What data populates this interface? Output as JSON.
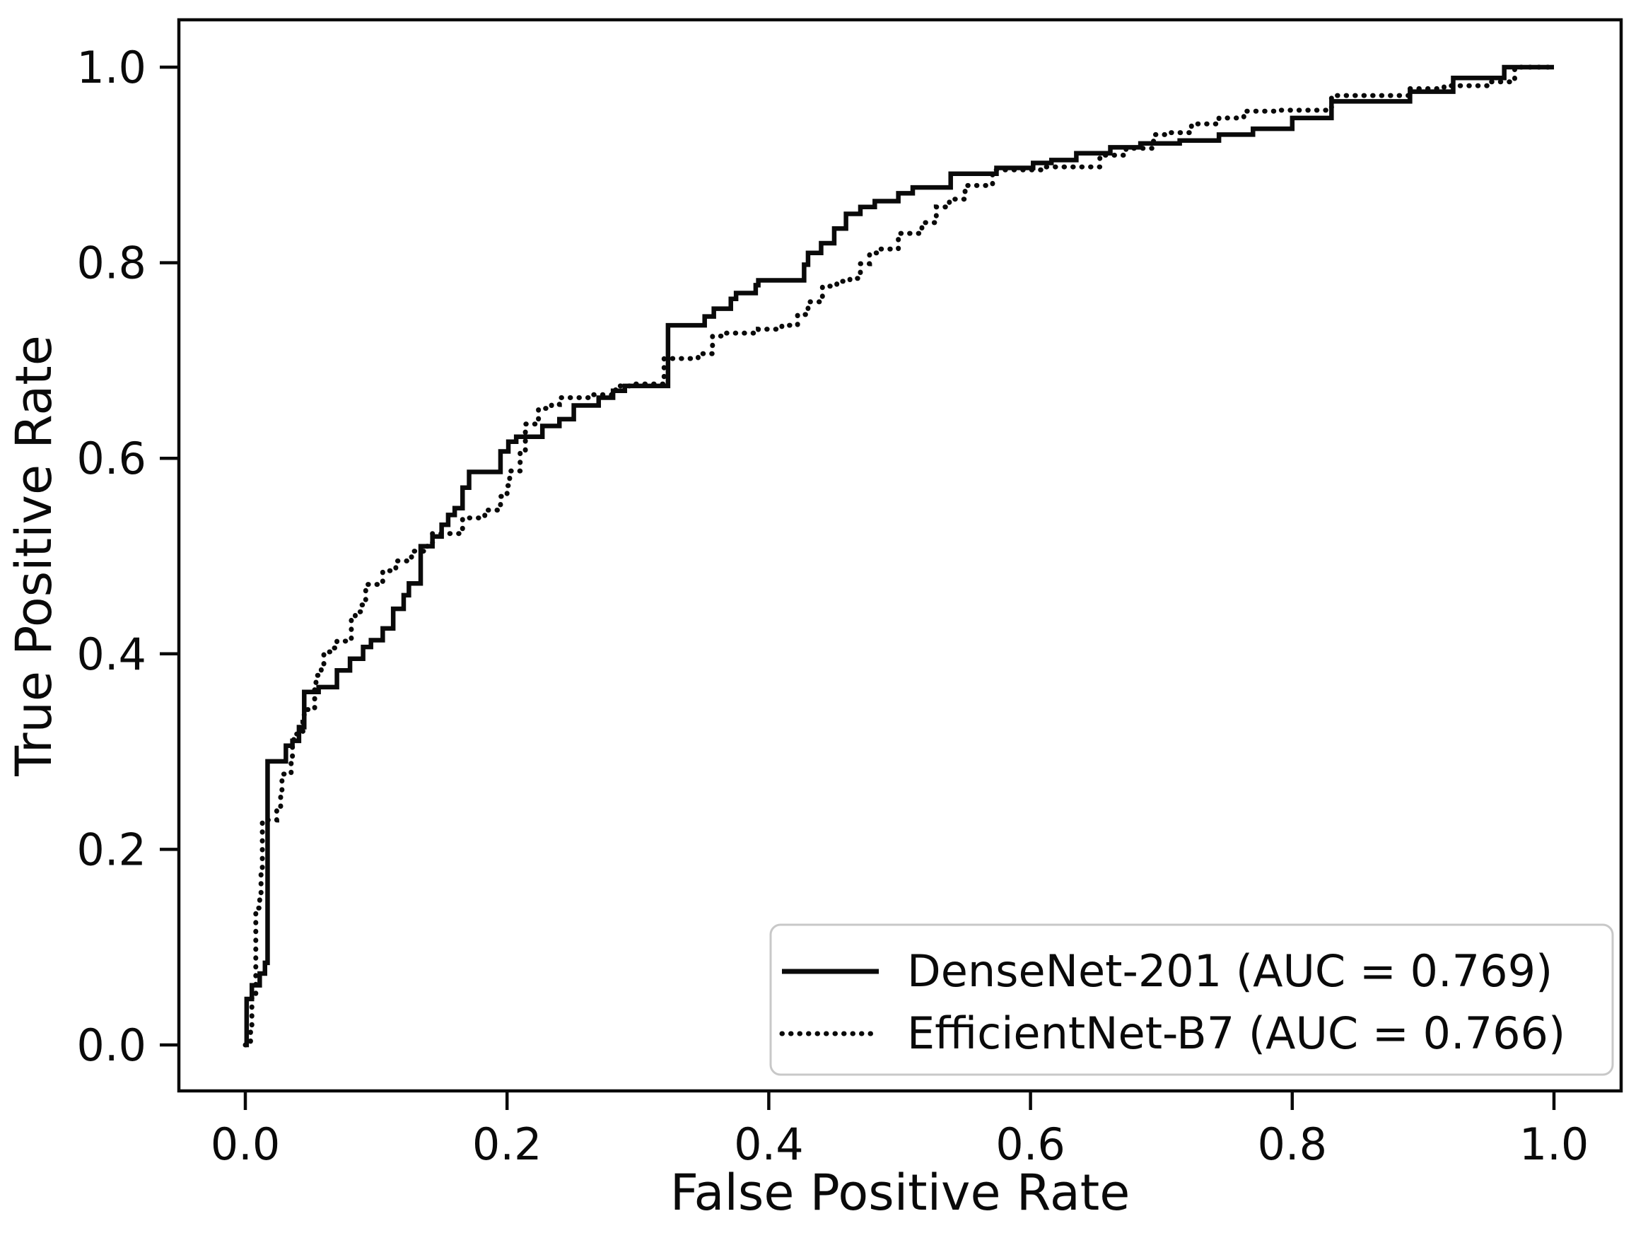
{
  "figure": {
    "background": "#ffffff",
    "axis_color": "#0a0a0a",
    "legend_border_color": "#c8c8c8",
    "legend_fill": "#ffffff"
  },
  "chart_data": {
    "type": "line",
    "subtype": "roc-step-curves",
    "title": "",
    "xlabel": "False Positive Rate",
    "ylabel": "True Positive Rate",
    "xlim": [
      -0.05,
      1.05
    ],
    "ylim": [
      -0.05,
      1.05
    ],
    "grid": false,
    "legend_position": "lower right",
    "x_ticks": [
      0.0,
      0.2,
      0.4,
      0.6,
      0.8,
      1.0
    ],
    "y_ticks": [
      0.0,
      0.2,
      0.4,
      0.6,
      0.8,
      1.0
    ],
    "x_tick_labels": [
      "0.0",
      "0.2",
      "0.4",
      "0.6",
      "0.8",
      "1.0"
    ],
    "y_tick_labels": [
      "0.0",
      "0.2",
      "0.4",
      "0.6",
      "0.8",
      "1.0"
    ],
    "series": [
      {
        "name": "DenseNet-201 (AUC = 0.769)",
        "auc": 0.769,
        "style": "solid",
        "color": "#0a0a0a",
        "step": true,
        "points": [
          [
            0.001,
            0.047
          ],
          [
            0.005,
            0.061
          ],
          [
            0.011,
            0.073
          ],
          [
            0.015,
            0.084
          ],
          [
            0.017,
            0.29
          ],
          [
            0.031,
            0.306
          ],
          [
            0.036,
            0.311
          ],
          [
            0.041,
            0.325
          ],
          [
            0.045,
            0.361
          ],
          [
            0.056,
            0.366
          ],
          [
            0.07,
            0.383
          ],
          [
            0.08,
            0.395
          ],
          [
            0.09,
            0.407
          ],
          [
            0.096,
            0.414
          ],
          [
            0.105,
            0.426
          ],
          [
            0.113,
            0.446
          ],
          [
            0.121,
            0.46
          ],
          [
            0.125,
            0.472
          ],
          [
            0.134,
            0.51
          ],
          [
            0.143,
            0.52
          ],
          [
            0.15,
            0.532
          ],
          [
            0.155,
            0.542
          ],
          [
            0.16,
            0.549
          ],
          [
            0.166,
            0.57
          ],
          [
            0.171,
            0.586
          ],
          [
            0.195,
            0.607
          ],
          [
            0.201,
            0.617
          ],
          [
            0.207,
            0.622
          ],
          [
            0.227,
            0.633
          ],
          [
            0.24,
            0.64
          ],
          [
            0.251,
            0.654
          ],
          [
            0.27,
            0.662
          ],
          [
            0.281,
            0.669
          ],
          [
            0.29,
            0.674
          ],
          [
            0.323,
            0.736
          ],
          [
            0.351,
            0.745
          ],
          [
            0.358,
            0.753
          ],
          [
            0.371,
            0.763
          ],
          [
            0.375,
            0.769
          ],
          [
            0.39,
            0.777
          ],
          [
            0.392,
            0.782
          ],
          [
            0.427,
            0.798
          ],
          [
            0.43,
            0.81
          ],
          [
            0.44,
            0.82
          ],
          [
            0.45,
            0.835
          ],
          [
            0.459,
            0.85
          ],
          [
            0.47,
            0.857
          ],
          [
            0.481,
            0.863
          ],
          [
            0.499,
            0.871
          ],
          [
            0.51,
            0.877
          ],
          [
            0.539,
            0.891
          ],
          [
            0.574,
            0.897
          ],
          [
            0.602,
            0.902
          ],
          [
            0.616,
            0.905
          ],
          [
            0.635,
            0.912
          ],
          [
            0.661,
            0.918
          ],
          [
            0.684,
            0.922
          ],
          [
            0.714,
            0.925
          ],
          [
            0.744,
            0.931
          ],
          [
            0.77,
            0.937
          ],
          [
            0.8,
            0.948
          ],
          [
            0.83,
            0.965
          ],
          [
            0.89,
            0.975
          ],
          [
            0.923,
            0.989
          ],
          [
            0.962,
            1.0
          ],
          [
            1.0,
            1.0
          ]
        ]
      },
      {
        "name": "EfficientNet-B7 (AUC = 0.766)",
        "auc": 0.766,
        "style": "dotted",
        "color": "#0a0a0a",
        "step": true,
        "points": [
          [
            0.004,
            0.02
          ],
          [
            0.005,
            0.05
          ],
          [
            0.008,
            0.14
          ],
          [
            0.011,
            0.15
          ],
          [
            0.012,
            0.18
          ],
          [
            0.013,
            0.23
          ],
          [
            0.024,
            0.24
          ],
          [
            0.027,
            0.26
          ],
          [
            0.028,
            0.277
          ],
          [
            0.035,
            0.293
          ],
          [
            0.036,
            0.306
          ],
          [
            0.037,
            0.318
          ],
          [
            0.044,
            0.33
          ],
          [
            0.045,
            0.343
          ],
          [
            0.053,
            0.366
          ],
          [
            0.054,
            0.378
          ],
          [
            0.058,
            0.388
          ],
          [
            0.06,
            0.402
          ],
          [
            0.068,
            0.406
          ],
          [
            0.07,
            0.413
          ],
          [
            0.081,
            0.435
          ],
          [
            0.084,
            0.443
          ],
          [
            0.089,
            0.45
          ],
          [
            0.092,
            0.471
          ],
          [
            0.105,
            0.485
          ],
          [
            0.115,
            0.495
          ],
          [
            0.127,
            0.505
          ],
          [
            0.137,
            0.51
          ],
          [
            0.143,
            0.523
          ],
          [
            0.166,
            0.539
          ],
          [
            0.183,
            0.547
          ],
          [
            0.193,
            0.551
          ],
          [
            0.195,
            0.561
          ],
          [
            0.2,
            0.572
          ],
          [
            0.202,
            0.587
          ],
          [
            0.21,
            0.607
          ],
          [
            0.214,
            0.635
          ],
          [
            0.224,
            0.651
          ],
          [
            0.234,
            0.655
          ],
          [
            0.24,
            0.662
          ],
          [
            0.265,
            0.665
          ],
          [
            0.283,
            0.674
          ],
          [
            0.294,
            0.676
          ],
          [
            0.32,
            0.702
          ],
          [
            0.346,
            0.707
          ],
          [
            0.357,
            0.725
          ],
          [
            0.367,
            0.728
          ],
          [
            0.392,
            0.732
          ],
          [
            0.41,
            0.736
          ],
          [
            0.422,
            0.747
          ],
          [
            0.43,
            0.76
          ],
          [
            0.441,
            0.776
          ],
          [
            0.452,
            0.781
          ],
          [
            0.462,
            0.784
          ],
          [
            0.47,
            0.799
          ],
          [
            0.477,
            0.81
          ],
          [
            0.484,
            0.814
          ],
          [
            0.499,
            0.83
          ],
          [
            0.517,
            0.841
          ],
          [
            0.528,
            0.857
          ],
          [
            0.538,
            0.865
          ],
          [
            0.55,
            0.879
          ],
          [
            0.571,
            0.895
          ],
          [
            0.61,
            0.898
          ],
          [
            0.653,
            0.91
          ],
          [
            0.673,
            0.917
          ],
          [
            0.694,
            0.931
          ],
          [
            0.706,
            0.933
          ],
          [
            0.723,
            0.942
          ],
          [
            0.744,
            0.948
          ],
          [
            0.763,
            0.955
          ],
          [
            0.786,
            0.956
          ],
          [
            0.83,
            0.971
          ],
          [
            0.89,
            0.978
          ],
          [
            0.916,
            0.981
          ],
          [
            0.952,
            0.985
          ],
          [
            0.97,
            1.0
          ],
          [
            1.0,
            1.0
          ]
        ]
      }
    ]
  }
}
